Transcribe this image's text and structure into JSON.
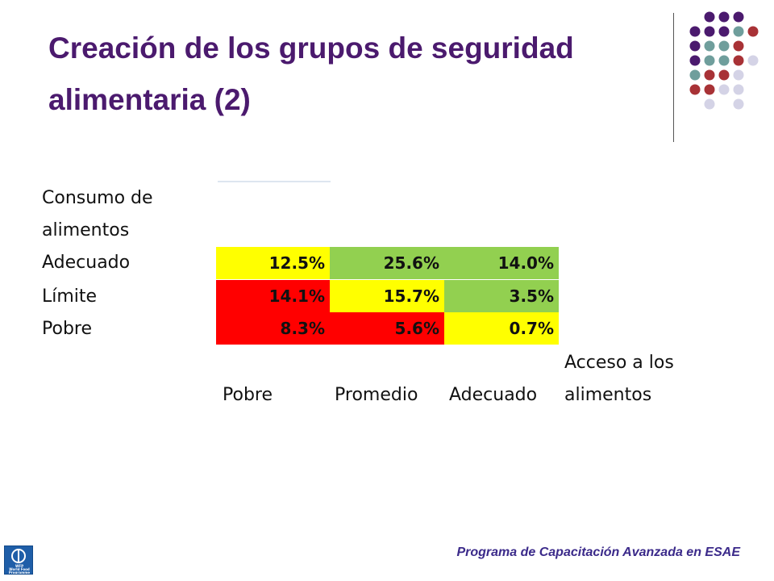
{
  "slide": {
    "title": "Creación de los grupos de seguridad alimentaria (2)",
    "footer": "Programa de Capacitación Avanzada en ESAE"
  },
  "logo": {
    "icon": "wfp-un-emblem-icon",
    "line1": "WFP",
    "line2": "World Food",
    "line3": "Programme"
  },
  "colors": {
    "title": "#4b1a6e",
    "purple": "#4b1a6e",
    "teal": "#6f9e9c",
    "red": "#a83236",
    "lavender": "#d4d3e6",
    "yellow": "#ffff00",
    "green": "#92d050",
    "cell_red": "#ff0000"
  },
  "matrix": {
    "row_axis": {
      "line1": "Consumo de",
      "line2": "alimentos"
    },
    "col_axis": {
      "line1": "Acceso a los",
      "line2": "alimentos"
    },
    "rows": [
      {
        "label": "Adecuado",
        "cells": [
          {
            "value": "12.5%",
            "color": "yellow"
          },
          {
            "value": "25.6%",
            "color": "green"
          },
          {
            "value": "14.0%",
            "color": "green"
          }
        ]
      },
      {
        "label": "Límite",
        "cells": [
          {
            "value": "14.1%",
            "color": "red"
          },
          {
            "value": "15.7%",
            "color": "yellow"
          },
          {
            "value": "3.5%",
            "color": "green"
          }
        ]
      },
      {
        "label": "Pobre",
        "cells": [
          {
            "value": "8.3%",
            "color": "red"
          },
          {
            "value": "5.6%",
            "color": "red"
          },
          {
            "value": "0.7%",
            "color": "yellow"
          }
        ]
      }
    ],
    "columns": [
      "Pobre",
      "Promedio",
      "Adecuado"
    ]
  }
}
